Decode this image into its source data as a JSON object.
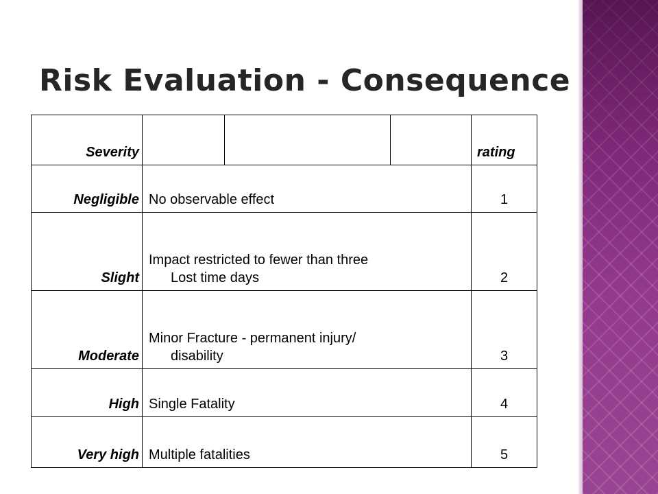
{
  "title": "Risk Evaluation - Consequence",
  "table": {
    "header": {
      "severity": "Severity",
      "rating": "rating"
    },
    "rows": [
      {
        "severity": "Negligible",
        "desc1": "No observable effect",
        "desc2": "",
        "rating": "1"
      },
      {
        "severity": "Slight",
        "desc1": "Impact restricted to fewer than three",
        "desc2": "Lost time days",
        "rating": "2"
      },
      {
        "severity": "Moderate",
        "desc1": "Minor Fracture - permanent injury/",
        "desc2": "disability",
        "rating": "3"
      },
      {
        "severity": "High",
        "desc1": "Single Fatality",
        "desc2": "",
        "rating": "4"
      },
      {
        "severity": "Very high",
        "desc1": "Multiple fatalities",
        "desc2": "",
        "rating": "5"
      }
    ]
  },
  "colors": {
    "accent": "#8e2f86",
    "title": "#262626"
  }
}
